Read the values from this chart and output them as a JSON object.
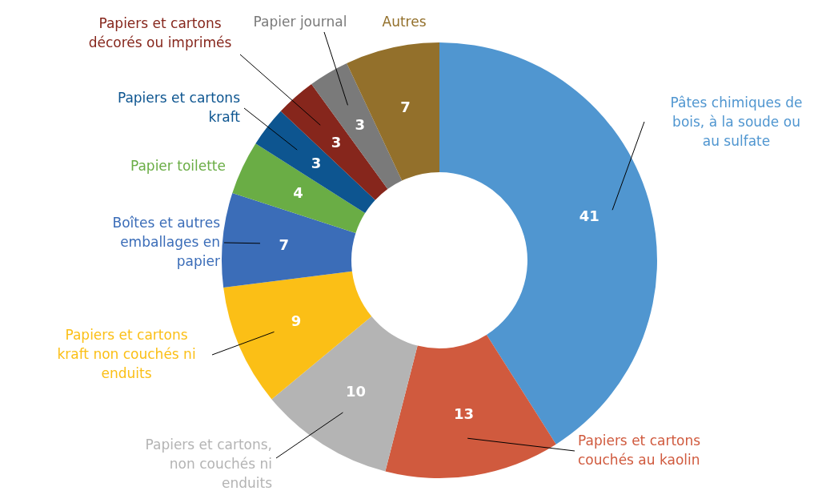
{
  "chart_data": {
    "type": "donut",
    "categories": [
      "Pâtes chimiques de bois, à la soude ou au sulfate",
      "Papiers et cartons couchés au kaolin",
      "Papiers et cartons, non couchés ni enduits",
      "Papiers et cartons kraft non couchés ni enduits",
      "Boîtes et autres emballages en papier",
      "Papier toilette",
      "Papiers et cartons kraft",
      "Papiers et cartons décorés ou imprimés",
      "Papier journal",
      "Autres"
    ],
    "values": [
      41,
      13,
      10,
      9,
      7,
      4,
      3,
      3,
      3,
      7
    ],
    "colors": [
      "#5096d0",
      "#d05a3e",
      "#b4b4b4",
      "#fbbf16",
      "#3b6db8",
      "#6aad45",
      "#0d5590",
      "#86261c",
      "#7a7a7a",
      "#93702b"
    ],
    "data_labels": true
  }
}
